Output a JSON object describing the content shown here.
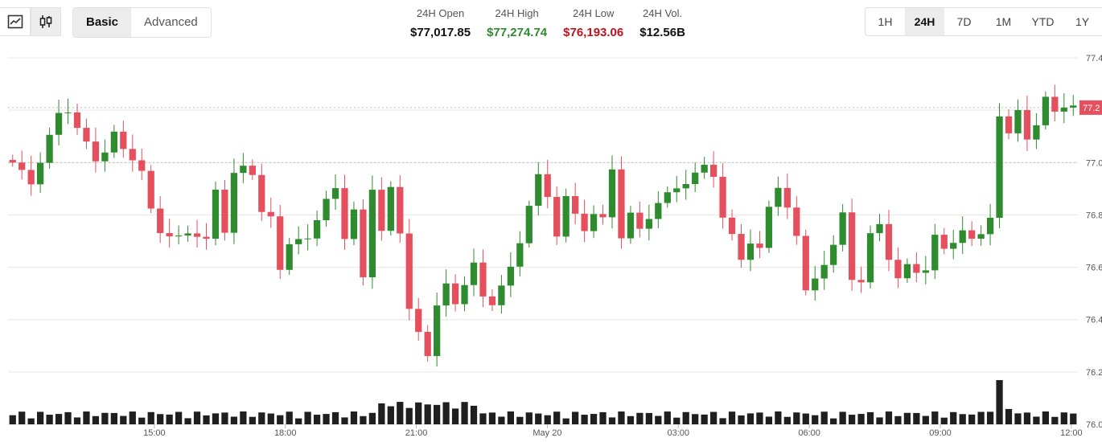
{
  "toolbar": {
    "chart_types": [
      {
        "icon": "line-chart-icon",
        "active": false
      },
      {
        "icon": "candlestick-icon",
        "active": true
      }
    ],
    "modes": [
      {
        "label": "Basic",
        "active": true
      },
      {
        "label": "Advanced",
        "active": false
      }
    ],
    "stats": [
      {
        "label": "24H Open",
        "value": "$77,017.85",
        "color": "#111111"
      },
      {
        "label": "24H High",
        "value": "$77,274.74",
        "color": "#2e8b2e"
      },
      {
        "label": "24H Low",
        "value": "$76,193.06",
        "color": "#c0121e"
      },
      {
        "label": "24H Vol.",
        "value": "$12.56B",
        "color": "#111111"
      }
    ],
    "ranges": [
      {
        "label": "1H",
        "active": false
      },
      {
        "label": "24H",
        "active": true
      },
      {
        "label": "7D",
        "active": false
      },
      {
        "label": "1M",
        "active": false
      },
      {
        "label": "YTD",
        "active": false
      },
      {
        "label": "1Y",
        "active": false
      }
    ]
  },
  "chart_data": {
    "type": "candlestick",
    "colors": {
      "up": "#2e8b2e",
      "down": "#e5505e",
      "volume": "#1f1f1f",
      "grid": "#e6e6e6",
      "price_tag": "#e5505e"
    },
    "y_ticks": [
      "77.4",
      "77.2",
      "77.0",
      "76.8",
      "76.6",
      "76.4",
      "76.2",
      "76.0"
    ],
    "ylim": [
      76.0,
      77.4
    ],
    "y_unit_note": "",
    "x_ticks": [
      {
        "label": "15:00",
        "hour": 3
      },
      {
        "label": "18:00",
        "hour": 6
      },
      {
        "label": "21:00",
        "hour": 9
      },
      {
        "label": "May 20",
        "hour": 12
      },
      {
        "label": "03:00",
        "hour": 15
      },
      {
        "label": "06:00",
        "hour": 18
      },
      {
        "label": "09:00",
        "hour": 21
      },
      {
        "label": "12:00",
        "hour": 24
      }
    ],
    "x_start": "12:00",
    "x_end": "12:30",
    "reference_lines": [
      77.0
    ],
    "current_price_label": "77.2",
    "current_price": 77.21,
    "anchors": [
      [
        0,
        77.0
      ],
      [
        2,
        76.92
      ],
      [
        4,
        77.1
      ],
      [
        5,
        77.18
      ],
      [
        6,
        77.2
      ],
      [
        7,
        77.14
      ],
      [
        9,
        77.0
      ],
      [
        10,
        77.05
      ],
      [
        11,
        77.12
      ],
      [
        12,
        77.04
      ],
      [
        14,
        76.98
      ],
      [
        15,
        76.82
      ],
      [
        16,
        76.72
      ],
      [
        18,
        76.73
      ],
      [
        20,
        76.71
      ],
      [
        21,
        76.72
      ],
      [
        22,
        76.9
      ],
      [
        23,
        76.72
      ],
      [
        24,
        76.96
      ],
      [
        25,
        77.0
      ],
      [
        26,
        76.95
      ],
      [
        27,
        76.8
      ],
      [
        28,
        76.8
      ],
      [
        29,
        76.6
      ],
      [
        30,
        76.68
      ],
      [
        32,
        76.72
      ],
      [
        34,
        76.85
      ],
      [
        35,
        76.9
      ],
      [
        36,
        76.72
      ],
      [
        37,
        76.82
      ],
      [
        38,
        76.55
      ],
      [
        39,
        76.9
      ],
      [
        40,
        76.75
      ],
      [
        41,
        76.9
      ],
      [
        42,
        76.72
      ],
      [
        43,
        76.45
      ],
      [
        44,
        76.36
      ],
      [
        45,
        76.25
      ],
      [
        46,
        76.45
      ],
      [
        47,
        76.55
      ],
      [
        48,
        76.46
      ],
      [
        49,
        76.52
      ],
      [
        50,
        76.62
      ],
      [
        51,
        76.5
      ],
      [
        52,
        76.45
      ],
      [
        53,
        76.52
      ],
      [
        55,
        76.7
      ],
      [
        57,
        76.95
      ],
      [
        58,
        76.88
      ],
      [
        59,
        76.72
      ],
      [
        60,
        76.86
      ],
      [
        62,
        76.75
      ],
      [
        63,
        76.8
      ],
      [
        64,
        76.78
      ],
      [
        65,
        76.98
      ],
      [
        66,
        76.72
      ],
      [
        67,
        76.8
      ],
      [
        68,
        76.74
      ],
      [
        70,
        76.85
      ],
      [
        72,
        76.9
      ],
      [
        74,
        76.96
      ],
      [
        75,
        76.98
      ],
      [
        76,
        76.95
      ],
      [
        77,
        76.8
      ],
      [
        78,
        76.72
      ],
      [
        79,
        76.62
      ],
      [
        80,
        76.7
      ],
      [
        81,
        76.68
      ],
      [
        82,
        76.82
      ],
      [
        83,
        76.9
      ],
      [
        84,
        76.84
      ],
      [
        85,
        76.72
      ],
      [
        86,
        76.5
      ],
      [
        88,
        76.62
      ],
      [
        89,
        76.68
      ],
      [
        90,
        76.8
      ],
      [
        91,
        76.56
      ],
      [
        92,
        76.55
      ],
      [
        93,
        76.72
      ],
      [
        94,
        76.76
      ],
      [
        95,
        76.64
      ],
      [
        96,
        76.56
      ],
      [
        97,
        76.6
      ],
      [
        98,
        76.58
      ],
      [
        99,
        76.6
      ],
      [
        100,
        76.72
      ],
      [
        101,
        76.66
      ],
      [
        102,
        76.7
      ],
      [
        103,
        76.75
      ],
      [
        104,
        76.7
      ],
      [
        105,
        76.72
      ],
      [
        106,
        76.8
      ],
      [
        107,
        77.18
      ],
      [
        108,
        77.1
      ],
      [
        109,
        77.2
      ],
      [
        110,
        77.1
      ],
      [
        111,
        77.14
      ],
      [
        112,
        77.24
      ],
      [
        113,
        77.2
      ],
      [
        114,
        77.22
      ],
      [
        115,
        77.21
      ]
    ],
    "volume_max_index": 107
  }
}
